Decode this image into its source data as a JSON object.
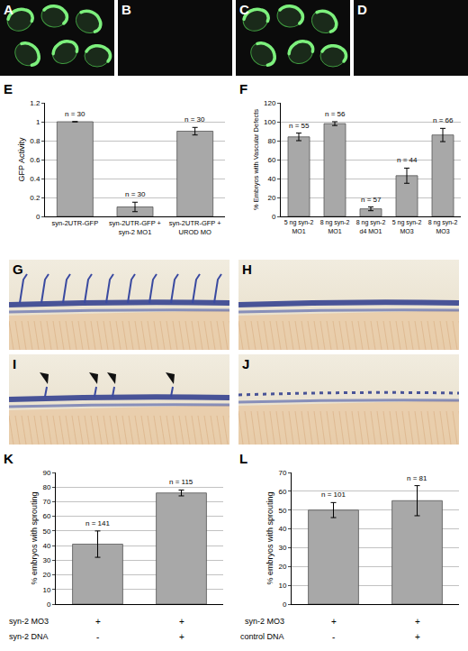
{
  "image_panels": [
    {
      "label": "A"
    },
    {
      "label": "B"
    },
    {
      "label": "C"
    },
    {
      "label": "D"
    },
    {
      "label": "G"
    },
    {
      "label": "H"
    },
    {
      "label": "I"
    },
    {
      "label": "J"
    }
  ],
  "chart_data": [
    {
      "label": "E",
      "type": "bar",
      "categories": [
        "syn-2UTR-GFP",
        "syn-2UTR-GFP + syn-2 MO1",
        "syn-2UTR-GFP + UROD MO"
      ],
      "values": [
        1,
        0.1,
        0.9
      ],
      "errors": [
        0,
        0.05,
        0.04
      ],
      "bar_labels": [
        "n = 30",
        "n = 30",
        "n = 30"
      ],
      "y_label": "GFP Activity",
      "ylim": [
        0,
        1.2
      ],
      "yticks": [
        0,
        0.2,
        0.4,
        0.6,
        0.8,
        1,
        1.2
      ],
      "grid": true,
      "color": "#a8a8a8"
    },
    {
      "label": "F",
      "type": "bar",
      "categories": [
        "5 ng syn-2 MO1",
        "8 ng syn-2 MO1",
        "8 ng syn-2 d4 MO1",
        "5 ng syn-2 MO3",
        "8 ng syn-2 MO3"
      ],
      "values": [
        84,
        98,
        8,
        43,
        86
      ],
      "errors": [
        4,
        2,
        2,
        8,
        7
      ],
      "bar_labels": [
        "n = 55",
        "n = 56",
        "n = 57",
        "n = 44",
        "n = 66"
      ],
      "y_label": "% Embryos with Vascular Defects",
      "ylim": [
        0,
        120
      ],
      "yticks": [
        0,
        20,
        40,
        60,
        80,
        100,
        120
      ],
      "grid": true,
      "color": "#a8a8a8"
    },
    {
      "label": "K",
      "type": "bar",
      "categories": [
        null,
        null
      ],
      "values": [
        41,
        76
      ],
      "errors": [
        9,
        2
      ],
      "bar_labels": [
        "n = 141",
        "n = 115"
      ],
      "rows": [
        {
          "label": "syn-2 MO3",
          "marks": [
            "+",
            "+"
          ]
        },
        {
          "label": "syn-2 DNA",
          "marks": [
            "-",
            "+"
          ]
        }
      ],
      "y_label": "% embryos with sprouting",
      "ylim": [
        0,
        90
      ],
      "yticks": [
        0,
        10,
        20,
        30,
        40,
        50,
        60,
        70,
        80,
        90
      ],
      "grid": true,
      "color": "#a8a8a8"
    },
    {
      "label": "L",
      "type": "bar",
      "categories": [
        null,
        null
      ],
      "values": [
        50,
        55
      ],
      "errors": [
        4,
        8
      ],
      "bar_labels": [
        "n = 101",
        "n = 81"
      ],
      "rows": [
        {
          "label": "syn-2 MO3",
          "marks": [
            "+",
            "+"
          ]
        },
        {
          "label": "control DNA",
          "marks": [
            "-",
            "+"
          ]
        }
      ],
      "y_label": "% embryos with sprouting",
      "ylim": [
        0,
        70
      ],
      "yticks": [
        0,
        10,
        20,
        30,
        40,
        50,
        60,
        70
      ],
      "grid": true,
      "color": "#a8a8a8"
    }
  ]
}
